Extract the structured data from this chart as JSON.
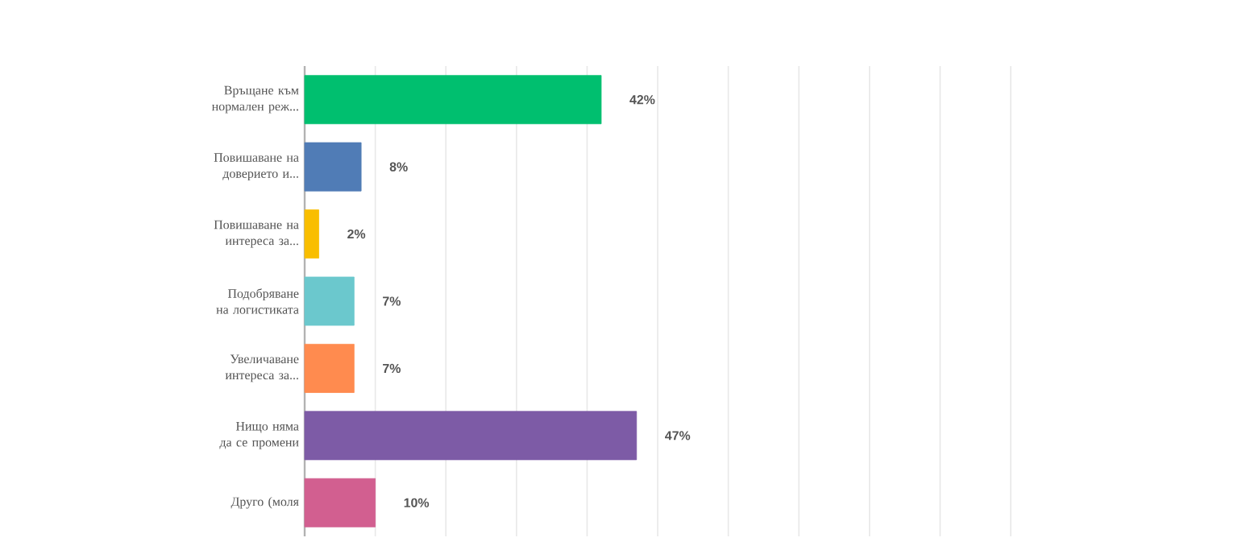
{
  "chart_data": {
    "type": "bar",
    "orientation": "horizontal",
    "categories": [
      "Връщане към нормален реж...",
      "Повишаване на доверието и...",
      "Повишаване на интереса за...",
      "Подобряване на логистиката",
      "Увеличаване интереса за...",
      "Нищо няма да се промени",
      "Друго (моля"
    ],
    "values": [
      42,
      8,
      2,
      7,
      7,
      47,
      10
    ],
    "value_labels": [
      "42%",
      "8%",
      "2%",
      "7%",
      "7%",
      "47%",
      "10%"
    ],
    "colors": [
      "#00bf6f",
      "#507cb6",
      "#f9be00",
      "#6bc8cd",
      "#ff8b4f",
      "#7d5ba6",
      "#d25f90"
    ],
    "xlim": [
      0,
      100
    ],
    "grid": "x",
    "tick_labels": "y"
  }
}
